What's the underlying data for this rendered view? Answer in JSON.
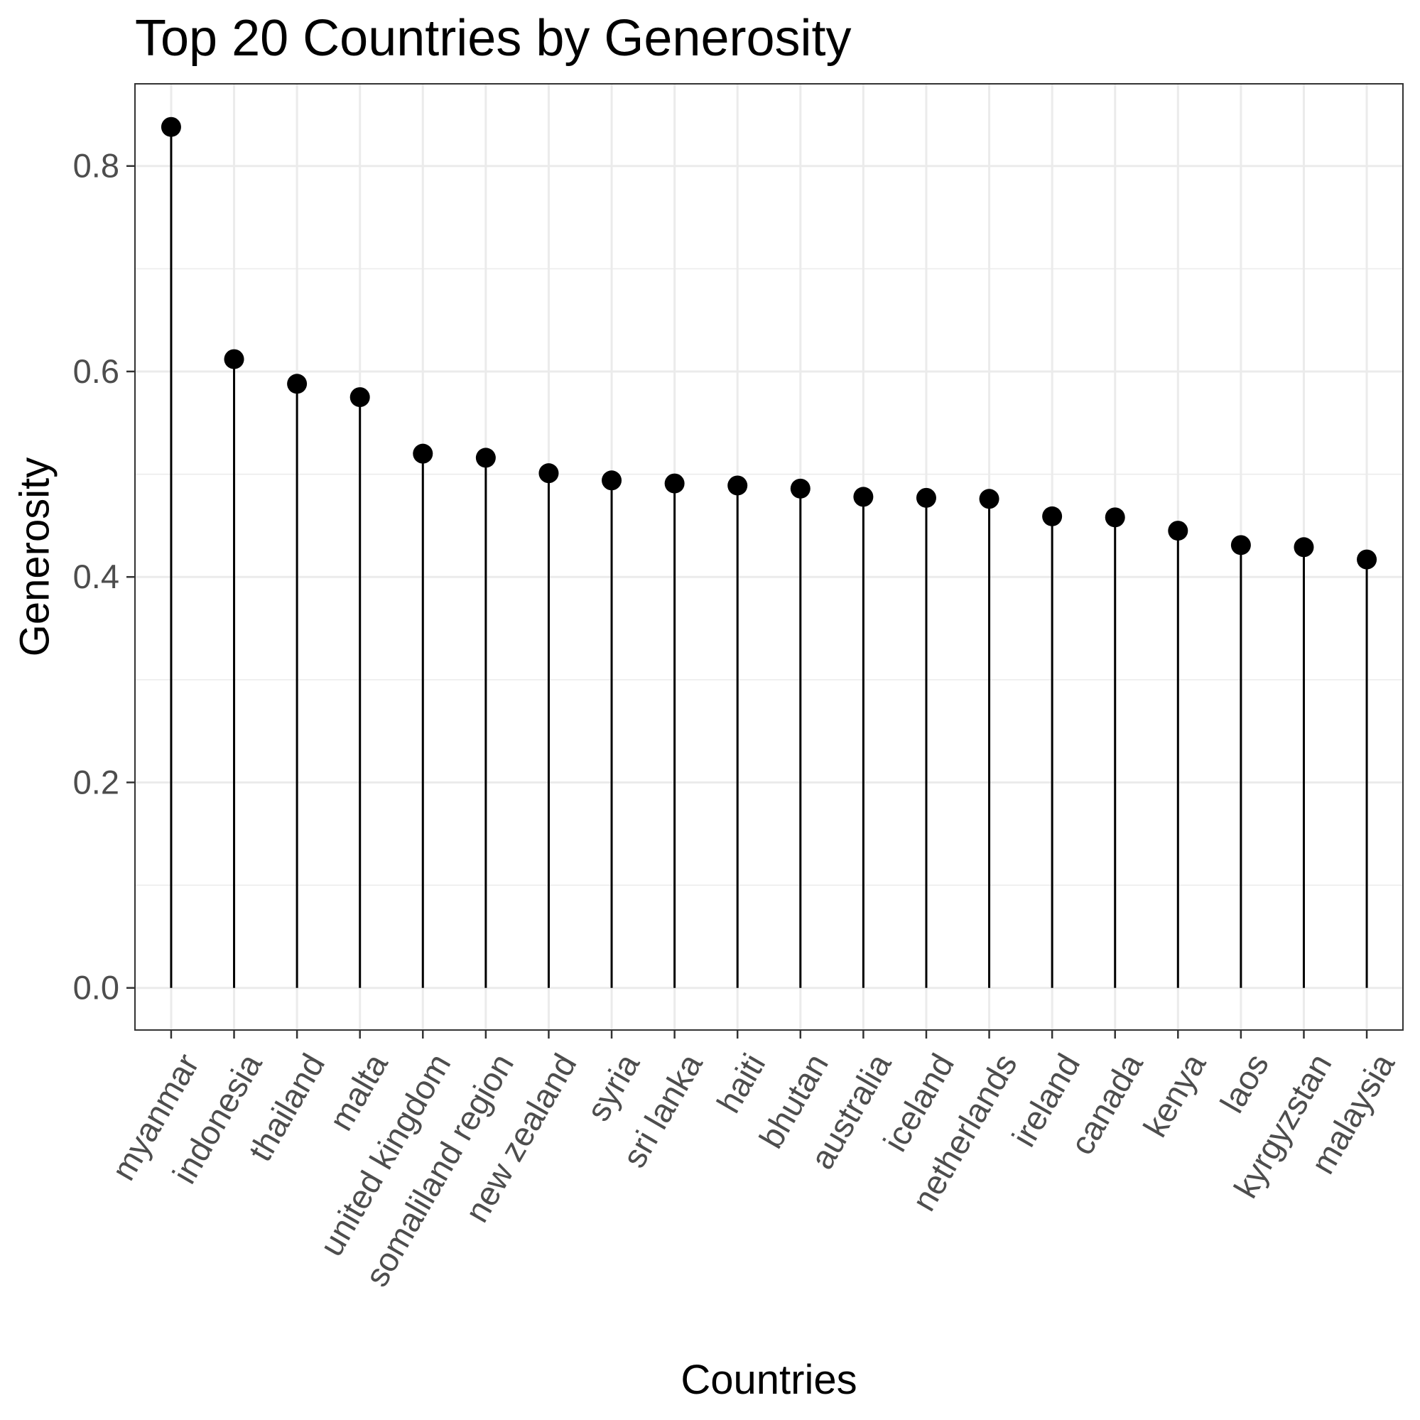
{
  "chart_data": {
    "type": "lollipop",
    "title": "Top 20 Countries by Generosity",
    "xlabel": "Countries",
    "ylabel": "Generosity",
    "ylim": [
      -0.041,
      0.88
    ],
    "yticks": [
      0.0,
      0.2,
      0.4,
      0.6,
      0.8
    ],
    "ytick_labels": [
      "0.0",
      "0.2",
      "0.4",
      "0.6",
      "0.8"
    ],
    "grid": true,
    "categories": [
      "myanmar",
      "indonesia",
      "thailand",
      "malta",
      "united kingdom",
      "somaliland region",
      "new zealand",
      "syria",
      "sri lanka",
      "haiti",
      "bhutan",
      "australia",
      "iceland",
      "netherlands",
      "ireland",
      "canada",
      "kenya",
      "laos",
      "kyrgyzstan",
      "malaysia"
    ],
    "values": [
      0.838,
      0.612,
      0.588,
      0.575,
      0.52,
      0.516,
      0.501,
      0.494,
      0.491,
      0.489,
      0.486,
      0.478,
      0.477,
      0.476,
      0.459,
      0.458,
      0.445,
      0.431,
      0.429,
      0.417
    ],
    "colors": {
      "marker": "#000000",
      "grid": "#ebebeb",
      "border": "#333333",
      "tick_text": "#4d4d4d"
    }
  }
}
